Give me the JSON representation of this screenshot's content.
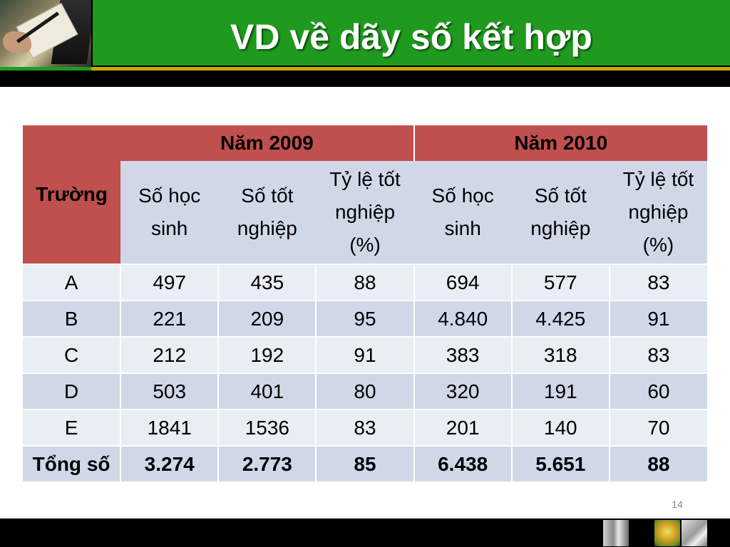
{
  "slide": {
    "title": "VD về dãy số kết hợp",
    "page_number": "14"
  },
  "table": {
    "school_header": "Trường",
    "years": [
      "Năm 2009",
      "Năm 2010"
    ],
    "sub_headers": [
      "Số học\nsinh",
      "Số tốt\nnghiệp",
      "Tỷ lệ tốt\nnghiệp\n(%)",
      "Số học\nsinh",
      "Số tốt\nnghiệp",
      "Tỷ lệ tốt\nnghiệp\n(%)"
    ],
    "rows": [
      {
        "school": "A",
        "values": [
          "497",
          "435",
          "88",
          "694",
          "577",
          "83"
        ]
      },
      {
        "school": "B",
        "values": [
          "221",
          "209",
          "95",
          "4.840",
          "4.425",
          "91"
        ]
      },
      {
        "school": "C",
        "values": [
          "212",
          "192",
          "91",
          "383",
          "318",
          "83"
        ]
      },
      {
        "school": "D",
        "values": [
          "503",
          "401",
          "80",
          "320",
          "191",
          "60"
        ]
      },
      {
        "school": "E",
        "values": [
          "1841",
          "1536",
          "83",
          "201",
          "140",
          "70"
        ]
      }
    ],
    "total": {
      "label": "Tổng số",
      "values": [
        "3.274",
        "2.773",
        "85",
        "6.438",
        "5.651",
        "88"
      ]
    }
  },
  "colors": {
    "header_green": "#1f9a1f",
    "accent_gold": "#c8a800",
    "table_header_red": "#c0504d",
    "row_dark": "#d0d8e8",
    "row_light": "#e9edf4"
  },
  "icons": [
    "header-photo-image",
    "footer-thumbnail-images"
  ]
}
